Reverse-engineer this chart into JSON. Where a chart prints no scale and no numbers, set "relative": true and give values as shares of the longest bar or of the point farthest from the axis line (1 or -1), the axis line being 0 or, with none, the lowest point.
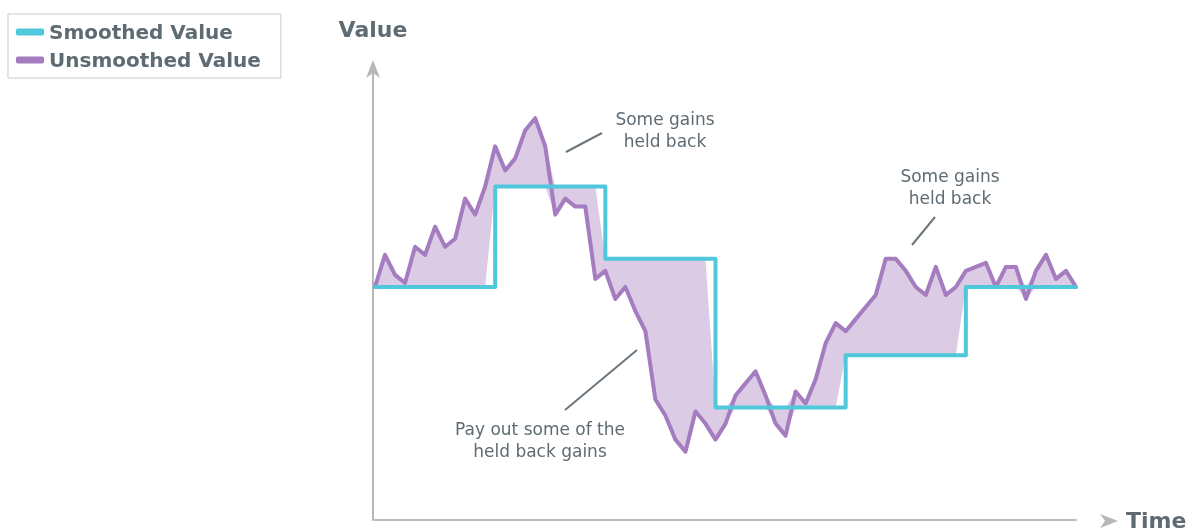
{
  "chart_data": {
    "type": "line",
    "relative": true,
    "xlabel": "Time",
    "ylabel": "Value",
    "legend": "top left",
    "grid": false,
    "marker": "none",
    "line_style": "solid",
    "categories": [
      null,
      null,
      null,
      null,
      null,
      null,
      null,
      null,
      null,
      null,
      null,
      null,
      null,
      null,
      null,
      null,
      null,
      null,
      null,
      null,
      null,
      null,
      null,
      null,
      null,
      null,
      null,
      null,
      null,
      null,
      null,
      null,
      null,
      null,
      null,
      null,
      null,
      null,
      null,
      null,
      null,
      null,
      null,
      null,
      null,
      null,
      null,
      null,
      null,
      null,
      null,
      null,
      null,
      null,
      null,
      null,
      null,
      null,
      null,
      null,
      null,
      null,
      null,
      null,
      null,
      null,
      null,
      null,
      null,
      null,
      null
    ],
    "series": [
      {
        "name": "Smoothed Value",
        "type": "step",
        "color": "#4fc8dc",
        "values": [
          0.58,
          0.58,
          0.58,
          0.58,
          0.58,
          0.58,
          0.58,
          0.58,
          0.58,
          0.58,
          0.58,
          0.58,
          0.83,
          0.83,
          0.83,
          0.83,
          0.83,
          0.83,
          0.83,
          0.83,
          0.83,
          0.83,
          0.83,
          0.65,
          0.65,
          0.65,
          0.65,
          0.65,
          0.65,
          0.65,
          0.65,
          0.65,
          0.65,
          0.65,
          0.28,
          0.28,
          0.28,
          0.28,
          0.28,
          0.28,
          0.28,
          0.28,
          0.28,
          0.28,
          0.28,
          0.28,
          0.28,
          0.41,
          0.41,
          0.41,
          0.41,
          0.41,
          0.41,
          0.41,
          0.41,
          0.41,
          0.41,
          0.41,
          0.41,
          0.58,
          0.58,
          0.58,
          0.58,
          0.58,
          0.58,
          0.58,
          0.58,
          0.58,
          0.58,
          0.58,
          0.58
        ]
      },
      {
        "name": "Unsmoothed Value",
        "type": "line",
        "color": "#a57cbf",
        "values": [
          0.58,
          0.66,
          0.61,
          0.59,
          0.68,
          0.66,
          0.73,
          0.68,
          0.7,
          0.8,
          0.76,
          0.83,
          0.93,
          0.87,
          0.9,
          0.97,
          1,
          0.93,
          0.76,
          0.8,
          0.78,
          0.78,
          0.6,
          0.62,
          0.55,
          0.58,
          0.52,
          0.47,
          0.3,
          0.26,
          0.2,
          0.17,
          0.27,
          0.24,
          0.2,
          0.24,
          0.31,
          0.34,
          0.37,
          0.31,
          0.24,
          0.21,
          0.32,
          0.29,
          0.35,
          0.44,
          0.49,
          0.47,
          0.5,
          0.53,
          0.56,
          0.65,
          0.65,
          0.62,
          0.58,
          0.56,
          0.63,
          0.56,
          0.58,
          0.62,
          0.63,
          0.64,
          0.58,
          0.63,
          0.63,
          0.55,
          0.62,
          0.66,
          0.6,
          0.62,
          0.58
        ],
        "lower": [
          0.58,
          0.58,
          0.58,
          0.58,
          0.58,
          0.58,
          0.58,
          0.58,
          0.58,
          0.58,
          0.58,
          0.58,
          0.83,
          0.83,
          0.83,
          0.83,
          0.83,
          0.83,
          0.76,
          0.8,
          0.78,
          0.78,
          0.6,
          0.62,
          0.55,
          0.58,
          0.52,
          0.47,
          0.3,
          0.26,
          0.2,
          0.17,
          0.27,
          0.24,
          0.2,
          0.24,
          0.28,
          0.28,
          0.28,
          0.28,
          0.24,
          0.21,
          0.28,
          0.28,
          0.28,
          0.28,
          0.28,
          0.41,
          0.41,
          0.41,
          0.41,
          0.41,
          0.41,
          0.41,
          0.41,
          0.41,
          0.41,
          0.41,
          0.41,
          0.58,
          0.58,
          0.58,
          0.58,
          0.58,
          0.58,
          0.55,
          0.58,
          0.58,
          0.58,
          0.58,
          0.58
        ],
        "upper": [
          0.58,
          0.66,
          0.61,
          0.59,
          0.68,
          0.66,
          0.73,
          0.68,
          0.7,
          0.8,
          0.76,
          0.83,
          0.93,
          0.87,
          0.9,
          0.97,
          1,
          0.93,
          0.83,
          0.83,
          0.83,
          0.83,
          0.83,
          0.65,
          0.65,
          0.65,
          0.65,
          0.65,
          0.65,
          0.65,
          0.65,
          0.65,
          0.65,
          0.65,
          0.28,
          0.28,
          0.31,
          0.34,
          0.37,
          0.31,
          0.28,
          0.28,
          0.32,
          0.29,
          0.35,
          0.44,
          0.49,
          0.47,
          0.5,
          0.53,
          0.56,
          0.65,
          0.65,
          0.62,
          0.58,
          0.56,
          0.63,
          0.56,
          0.58,
          0.62,
          0.63,
          0.64,
          0.58,
          0.63,
          0.63,
          0.58,
          0.62,
          0.66,
          0.6,
          0.62,
          0.58
        ]
      }
    ],
    "annotations": [
      "Some gains\nheld back",
      "Some gains\nheld back",
      "Pay out some of the\nheld back gains"
    ]
  }
}
